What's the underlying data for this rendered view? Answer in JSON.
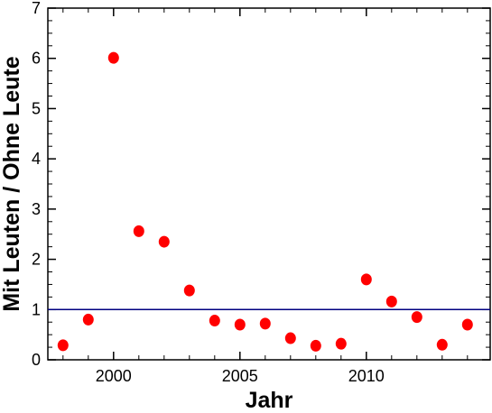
{
  "chart_data": {
    "type": "scatter",
    "title": "",
    "xlabel": "Jahr",
    "ylabel": "Mit Leuten / Ohne Leute",
    "xlim": [
      1997.4,
      2014.9
    ],
    "ylim": [
      0,
      7
    ],
    "x_ticks": [
      2000,
      2005,
      2010
    ],
    "y_ticks": [
      0,
      1,
      2,
      3,
      4,
      5,
      6,
      7
    ],
    "grid": false,
    "legend": "none",
    "reference_line": {
      "y": 1,
      "color": "#000080"
    },
    "series": [
      {
        "color": "#ff0000",
        "x": [
          1998,
          1999,
          2000,
          2001,
          2002,
          2003,
          2004,
          2005,
          2006,
          2007,
          2008,
          2009,
          2010,
          2011,
          2012,
          2013,
          2014
        ],
        "y": [
          0.29,
          0.8,
          6.01,
          2.56,
          2.35,
          1.38,
          0.78,
          0.7,
          0.72,
          0.43,
          0.28,
          0.32,
          1.6,
          1.16,
          0.85,
          0.3,
          0.7
        ]
      }
    ]
  }
}
